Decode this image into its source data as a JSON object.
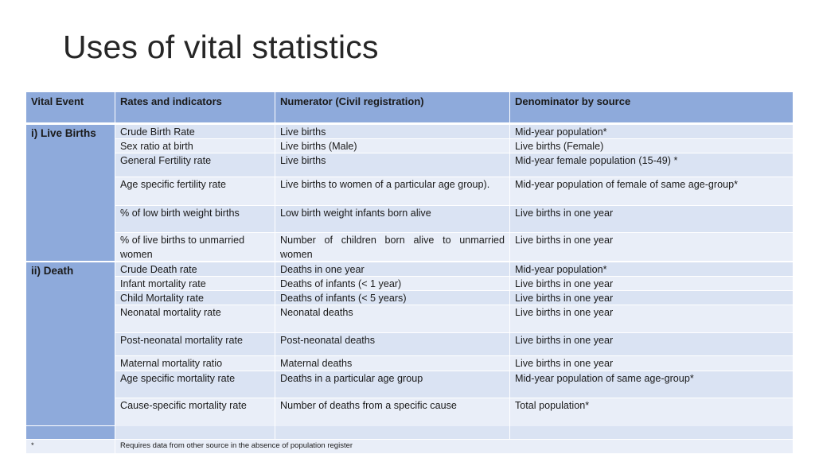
{
  "title": "Uses of vital statistics",
  "headers": {
    "vital_event": "Vital Event",
    "rates": "Rates and indicators",
    "numerator": "Numerator (Civil registration)",
    "denominator": "Denominator by source"
  },
  "groups": {
    "live_births": "i) Live Births",
    "death": "ii) Death"
  },
  "rows": [
    {
      "rate": "Crude Birth Rate",
      "numerator": "Live births",
      "denominator": "Mid-year population*"
    },
    {
      "rate": "Sex ratio at birth",
      "numerator": "Live births (Male)",
      "denominator": "Live births (Female)"
    },
    {
      "rate": "General Fertility rate",
      "numerator": "Live births",
      "denominator": "Mid-year female population (15-49) *"
    },
    {
      "rate": "Age specific fertility rate",
      "numerator": "Live births to women of a particular age group).",
      "denominator": "Mid-year population of female of same age-group*"
    },
    {
      "rate": "% of low birth weight births",
      "numerator": "Low birth weight infants born alive",
      "denominator": "Live births in one year"
    },
    {
      "rate": " % of live births to unmarried women",
      "numerator": "Number of children born alive to unmarried women",
      "denominator": "Live births in one year"
    },
    {
      "rate": "Crude Death rate",
      "numerator": "Deaths in one year",
      "denominator": "Mid-year population*"
    },
    {
      "rate": "Infant mortality rate",
      "numerator": "Deaths of infants (< 1 year)",
      "denominator": "Live births in one year"
    },
    {
      "rate": "Child Mortality rate",
      "numerator": "Deaths of infants (< 5 years)",
      "denominator": "Live births in one year"
    },
    {
      "rate": "Neonatal mortality rate",
      "numerator": "Neonatal deaths",
      "denominator": "Live births in one year"
    },
    {
      "rate": "Post-neonatal mortality rate",
      "numerator": "Post-neonatal deaths",
      "denominator": "Live births in one year"
    },
    {
      "rate": "Maternal mortality ratio",
      "numerator": "Maternal deaths",
      "denominator": "Live births in one year"
    },
    {
      "rate": "Age specific mortality rate",
      "numerator": "Deaths in a particular age group",
      "denominator": "Mid-year population of same age-group*"
    },
    {
      "rate": "Cause-specific mortality rate",
      "numerator": "Number of deaths from a specific cause",
      "denominator": "Total population*"
    }
  ],
  "footnote": {
    "marker": "*",
    "text": "Requires data from other source in the absence of population register"
  }
}
